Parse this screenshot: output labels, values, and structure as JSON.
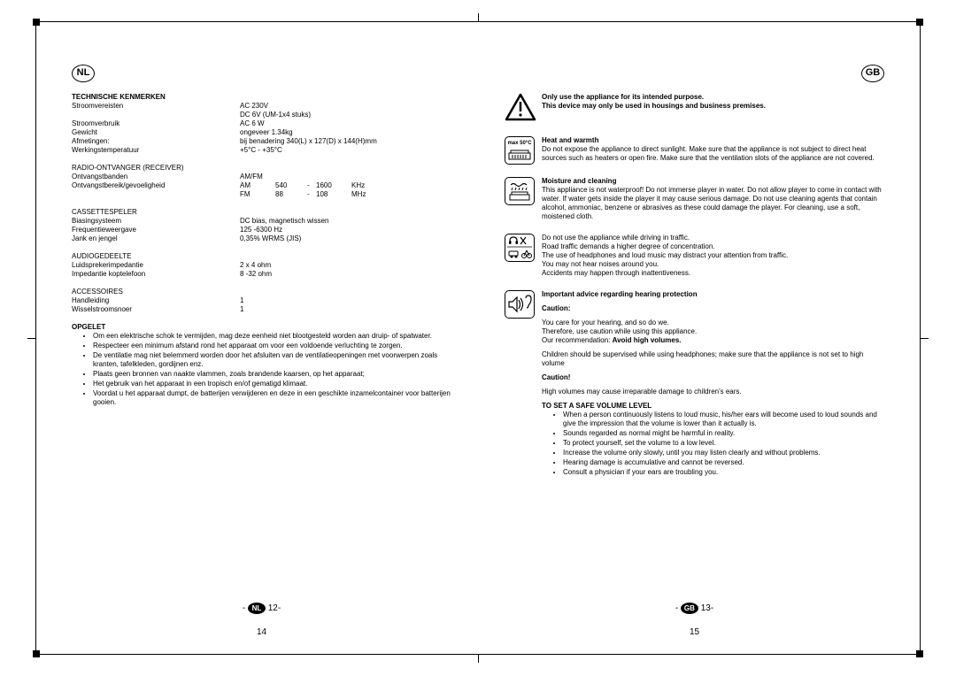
{
  "left_page": {
    "lang_badge": "NL",
    "heading_specs": "TECHNISCHE KENMERKEN",
    "specs_general": [
      {
        "label": "Stroomvereisten",
        "value": "AC 230V"
      },
      {
        "label": "",
        "value": "DC 6V     (UM-1x4 stuks)"
      },
      {
        "label": "Stroomverbruik",
        "value": "AC 6 W"
      },
      {
        "label": "Gewicht",
        "value": "ongeveer 1.34kg"
      },
      {
        "label": "Afmetingen:",
        "value": "bij benadering 340(L) x 127(D) x 144(H)mm"
      },
      {
        "label": "Werkingstemperatuur",
        "value": "+5°C - +35°C"
      }
    ],
    "heading_radio": "RADIO-ONTVANGER (RECEIVER)",
    "radio_bands_label": "Ontvangstbanden",
    "radio_bands_value": "AM/FM",
    "radio_sens_label": "Ontvangstbereik/gevoeligheid",
    "radio_rows": [
      {
        "band": "AM",
        "from": "540",
        "dash": "-",
        "to": "1600",
        "unit": "KHz"
      },
      {
        "band": "FM",
        "from": "88",
        "dash": "-",
        "to": "108",
        "unit": "MHz"
      }
    ],
    "heading_cassette": "CASSETTESPELER",
    "cassette": [
      {
        "label": "Biasingsysteem",
        "value": "DC bias, magnetisch wissen"
      },
      {
        "label": "Frequentieweergave",
        "value": "125 -6300 Hz"
      },
      {
        "label": "Jank en jengel",
        "value": "0,35% WRMS (JIS)"
      }
    ],
    "heading_audio": "AUDIOGEDEELTE",
    "audio": [
      {
        "label": "Luidsprekerimpedantie",
        "value": "2 x 4    ohm"
      },
      {
        "label": "Impedantie koptelefoon",
        "value": "8 -32    ohm"
      }
    ],
    "heading_accessories": "ACCESSOIRES",
    "accessories": [
      {
        "label": "Handleiding",
        "value": "1"
      },
      {
        "label": "Wisselstroomsnoer",
        "value": "1"
      }
    ],
    "heading_opgelet": "OPGELET",
    "opgelet_bullets": [
      "Om een elektrische schok te vermijden, mag deze eenheid niet blootgesteld worden aan druip- of spatwater.",
      "Respecteer een minimum afstand rond het apparaat om voor een voldoende verluchting te zorgen.",
      "De ventilatie mag niet belemmerd worden door het afsluiten van de ventilatieopeningen met voorwerpen zoals kranten, tafelkleden, gordijnen enz.",
      "Plaats geen bronnen van naakte vlammen, zoals brandende kaarsen, op het apparaat;",
      "Het gebruik van het apparaat in een tropisch en/of gematigd klimaat.",
      "Voordat u het apparaat dumpt, de batterijen verwijderen en deze in een geschikte inzamelcontainer voor batterijen gooien."
    ],
    "marker_label": "NL",
    "marker_num": "12",
    "page_num": "14"
  },
  "right_page": {
    "lang_badge": "GB",
    "intended_bold1": "Only use the appliance for its intended purpose.",
    "intended_bold2": "This device may only be used in housings and business premises.",
    "heat_heading": "Heat and warmth",
    "heat_icon_text": "max 50°C",
    "heat_body": "Do not expose the appliance to direct sunlight. Make sure that the appliance is not subject to direct heat sources such as heaters or open fire. Make sure that the ventilation slots of the appliance are not covered.",
    "moisture_heading": "Moisture and cleaning",
    "moisture_body": "This appliance is not waterproof! Do not immerse player in water. Do not allow player to come in contact with water. If water gets inside the player it may cause serious damage. Do not use cleaning agents that contain alcohol, ammoniac, benzene or abrasives as these could damage the player. For cleaning, use a soft, moistened cloth.",
    "traffic_lines": [
      "Do not use the appliance while driving in traffic.",
      "Road traffic demands a higher degree of concentration.",
      "The use of headphones and loud music may distract your attention from traffic.",
      "You may not hear noises around you.",
      "Accidents may happen through inattentiveness."
    ],
    "hearing_heading": "Important advice regarding hearing protection",
    "caution1": "Caution:",
    "hearing_body1": "You care for your hearing, and so do we.",
    "hearing_body2": "Therefore, use caution while using this appliance.",
    "hearing_rec_prefix": "Our recommendation: ",
    "hearing_rec_bold": "Avoid high volumes.",
    "children_body": "Children should be supervised while using headphones; make sure that the appliance is not set to high volume",
    "caution2": "Caution!",
    "caution2_body": "High volumes may cause irreparable damage to children's ears.",
    "safe_heading": "TO SET A SAFE VOLUME LEVEL",
    "safe_bullets": [
      "When a person continuously listens to loud music, his/her ears will become used to loud sounds and give the impression that the volume is lower than it actually is.",
      "Sounds regarded as normal might be harmful in reality.",
      "To protect yourself, set the volume to a low level.",
      "Increase the volume only slowly, until you may listen clearly and without problems.",
      "Hearing damage is accumulative and cannot be reversed.",
      "Consult a physician if your ears are troubling you."
    ],
    "marker_label": "GB",
    "marker_num": "13",
    "page_num": "15"
  }
}
